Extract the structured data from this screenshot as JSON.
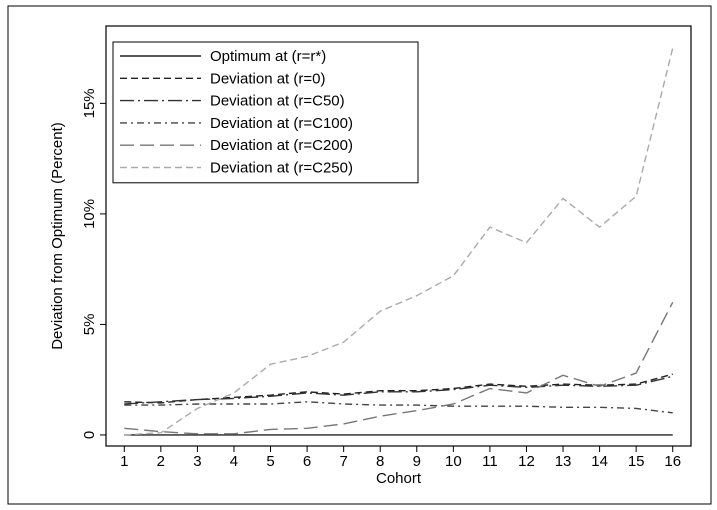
{
  "chart_data": {
    "type": "line",
    "xlabel": "Cohort",
    "ylabel": "Deviation from Optimum (Percent)",
    "x": [
      1,
      2,
      3,
      4,
      5,
      6,
      7,
      8,
      9,
      10,
      11,
      12,
      13,
      14,
      15,
      16
    ],
    "xlim": [
      0.5,
      16.5
    ],
    "ylim": [
      -0.5,
      18.5
    ],
    "y_ticks": [
      0,
      5,
      10,
      15
    ],
    "y_tick_labels": [
      "0",
      "5%",
      "10%",
      "15%"
    ],
    "legend_position": "top-left",
    "grid": false,
    "series": [
      {
        "name": "Optimum at (r=r*)",
        "color": "#222222",
        "dash": "solid",
        "values": [
          0,
          0,
          0,
          0,
          0,
          0,
          0,
          0,
          0,
          0,
          0,
          0,
          0,
          0,
          0,
          0
        ]
      },
      {
        "name": "Deviation at (r=0)",
        "color": "#222222",
        "dash": "dash",
        "values": [
          1.5,
          1.45,
          1.6,
          1.7,
          1.8,
          1.95,
          1.85,
          2.0,
          2.0,
          2.1,
          2.3,
          2.2,
          2.3,
          2.25,
          2.3,
          2.75
        ]
      },
      {
        "name": "Deviation at (r=C50)",
        "color": "#333333",
        "dash": "longdashdot",
        "values": [
          1.4,
          1.5,
          1.6,
          1.65,
          1.75,
          1.9,
          1.8,
          1.95,
          1.95,
          2.05,
          2.25,
          2.15,
          2.25,
          2.2,
          2.25,
          2.65
        ]
      },
      {
        "name": "Deviation at (r=C100)",
        "color": "#444444",
        "dash": "dashdot",
        "values": [
          1.35,
          1.35,
          1.4,
          1.4,
          1.4,
          1.5,
          1.4,
          1.35,
          1.35,
          1.3,
          1.3,
          1.3,
          1.25,
          1.25,
          1.2,
          1.0
        ]
      },
      {
        "name": "Deviation at (r=C200)",
        "color": "#777777",
        "dash": "longdash",
        "values": [
          0.3,
          0.15,
          0.05,
          0.05,
          0.25,
          0.3,
          0.5,
          0.85,
          1.1,
          1.4,
          2.1,
          1.9,
          2.7,
          2.2,
          2.8,
          6.0
        ]
      },
      {
        "name": "Deviation at (r=C250)",
        "color": "#aaaaaa",
        "dash": "dash",
        "values": [
          0.0,
          0.1,
          1.2,
          1.9,
          3.2,
          3.55,
          4.2,
          5.6,
          6.3,
          7.2,
          9.4,
          8.7,
          10.7,
          9.4,
          10.8,
          17.5
        ]
      }
    ]
  }
}
